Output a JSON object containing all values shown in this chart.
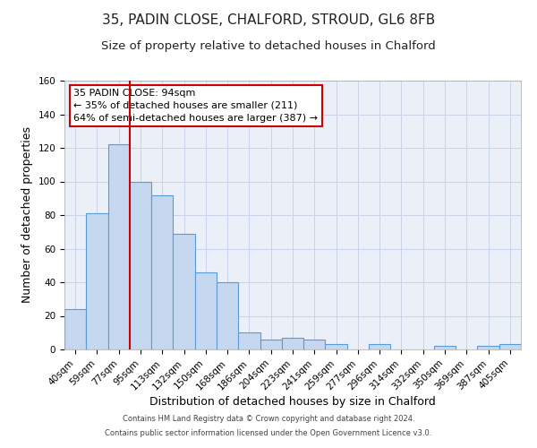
{
  "title": "35, PADIN CLOSE, CHALFORD, STROUD, GL6 8FB",
  "subtitle": "Size of property relative to detached houses in Chalford",
  "xlabel": "Distribution of detached houses by size in Chalford",
  "ylabel": "Number of detached properties",
  "bar_labels": [
    "40sqm",
    "59sqm",
    "77sqm",
    "95sqm",
    "113sqm",
    "132sqm",
    "150sqm",
    "168sqm",
    "186sqm",
    "204sqm",
    "223sqm",
    "241sqm",
    "259sqm",
    "277sqm",
    "296sqm",
    "314sqm",
    "332sqm",
    "350sqm",
    "369sqm",
    "387sqm",
    "405sqm"
  ],
  "bar_heights": [
    24,
    81,
    122,
    100,
    92,
    69,
    46,
    40,
    10,
    6,
    7,
    6,
    3,
    0,
    3,
    0,
    0,
    2,
    0,
    2,
    3
  ],
  "bar_color": "#c5d8f0",
  "bar_edge_color": "#5b9bd5",
  "vline_color": "#cc0000",
  "ylim": [
    0,
    160
  ],
  "annotation_text": "35 PADIN CLOSE: 94sqm\n← 35% of detached houses are smaller (211)\n64% of semi-detached houses are larger (387) →",
  "annotation_box_color": "#ffffff",
  "annotation_box_edge": "#cc0000",
  "footer_line1": "Contains HM Land Registry data © Crown copyright and database right 2024.",
  "footer_line2": "Contains public sector information licensed under the Open Government Licence v3.0.",
  "title_fontsize": 11,
  "subtitle_fontsize": 9.5,
  "tick_fontsize": 7.5,
  "ylabel_fontsize": 9,
  "xlabel_fontsize": 9,
  "annotation_fontsize": 8,
  "footer_fontsize": 6
}
